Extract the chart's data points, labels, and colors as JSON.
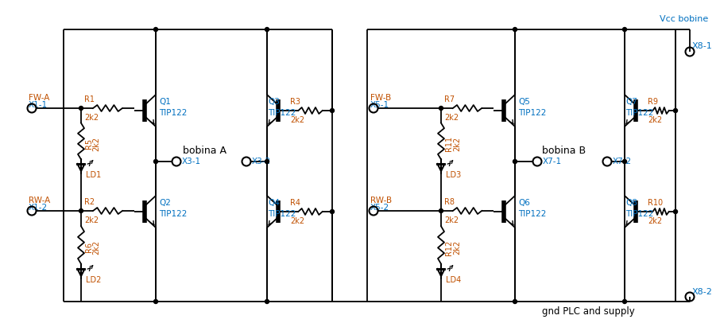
{
  "bg_color": "#ffffff",
  "line_color": "#000000",
  "blue_color": "#0070c0",
  "orange_color": "#c05000",
  "fig_width": 8.79,
  "fig_height": 3.92,
  "title_vcc": "Vcc bobine",
  "title_gnd": "gnd PLC and supply",
  "label_x81": "X8-1",
  "label_x82": "X8-2",
  "label_fwa": "FW-A",
  "label_x11": "X1-1",
  "label_rwa": "RW-A",
  "label_x12": "X1-2",
  "label_fwb": "FW-B",
  "label_x51": "X5-1",
  "label_rwb": "RW-B",
  "label_x52": "X5-2",
  "label_bobinaA": "bobina A",
  "label_bobinaB": "bobina B",
  "label_x31": "X3-1",
  "label_x32": "X3-2",
  "label_x71": "X7-1",
  "label_x72": "X7-2"
}
